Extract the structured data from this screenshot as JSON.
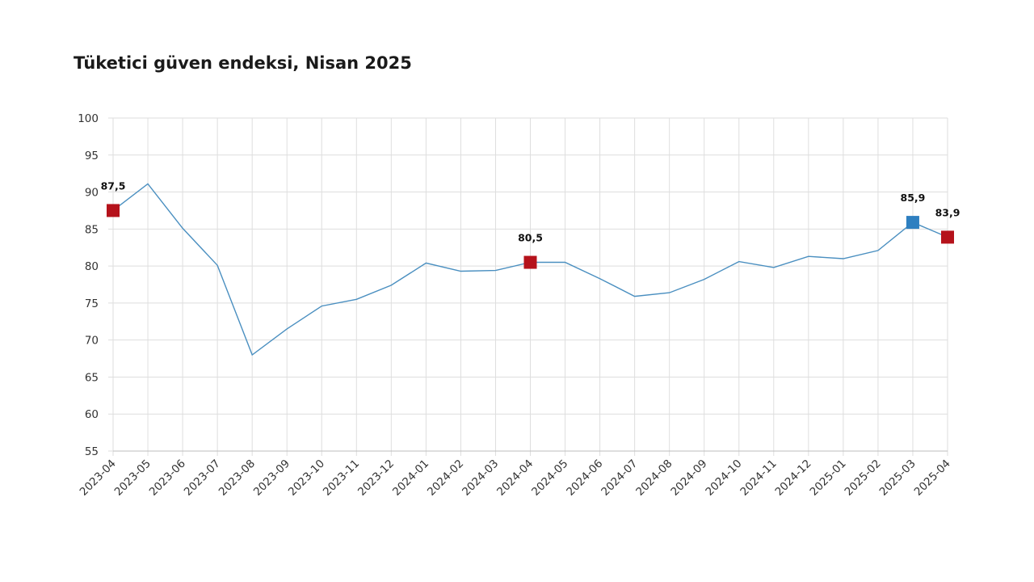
{
  "chart_data": {
    "type": "line",
    "title": "Tüketici güven endeksi, Nisan 2025",
    "xlabel": "",
    "ylabel": "",
    "ylim": [
      55,
      100
    ],
    "yticks": [
      55,
      60,
      65,
      70,
      75,
      80,
      85,
      90,
      95,
      100
    ],
    "grid": true,
    "x": [
      "2023-04",
      "2023-05",
      "2023-06",
      "2023-07",
      "2023-08",
      "2023-09",
      "2023-10",
      "2023-11",
      "2023-12",
      "2024-01",
      "2024-02",
      "2024-03",
      "2024-04",
      "2024-05",
      "2024-06",
      "2024-07",
      "2024-08",
      "2024-09",
      "2024-10",
      "2024-11",
      "2024-12",
      "2025-01",
      "2025-02",
      "2025-03",
      "2025-04"
    ],
    "series": [
      {
        "values": [
          87.5,
          91.1,
          85.1,
          80.1,
          68.0,
          71.5,
          74.6,
          75.5,
          77.4,
          80.4,
          79.3,
          79.4,
          80.5,
          80.5,
          78.3,
          75.9,
          76.4,
          78.2,
          80.6,
          79.8,
          81.3,
          81.0,
          82.1,
          85.9,
          83.9
        ],
        "color": "#4a8fc0"
      }
    ],
    "highlights": [
      {
        "index": 0,
        "label": "87,5",
        "color": "#b5121b"
      },
      {
        "index": 12,
        "label": "80,5",
        "color": "#b5121b"
      },
      {
        "index": 23,
        "label": "85,9",
        "color": "#2e7fc0"
      },
      {
        "index": 24,
        "label": "83,9",
        "color": "#b5121b"
      }
    ]
  }
}
